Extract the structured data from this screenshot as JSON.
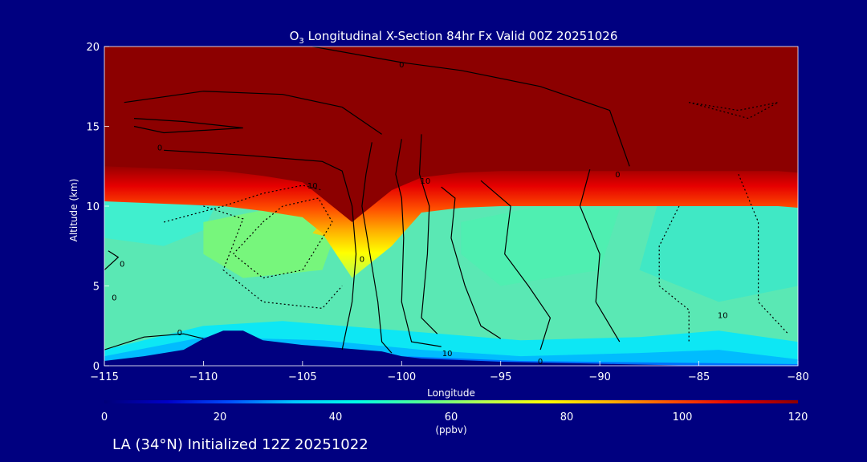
{
  "chart_data": {
    "type": "heatmap",
    "title": "O₃ Longitudinal X-Section 84hr  Fx Valid 00Z 20251026",
    "title_main": "O",
    "title_sub": "3",
    "title_rest": " Longitudinal X-Section 84hr  Fx Valid 00Z 20251026",
    "xlabel": "Longitude",
    "ylabel": "Altitude (km)",
    "xlim": [
      -115,
      -80
    ],
    "ylim": [
      0,
      20
    ],
    "x_ticks": [
      -115,
      -110,
      -105,
      -100,
      -95,
      -90,
      -85,
      -80
    ],
    "x_tick_labels": [
      "−115",
      "−110",
      "−105",
      "−100",
      "−95",
      "−90",
      "−85",
      "−80"
    ],
    "y_ticks": [
      0,
      5,
      10,
      15,
      20
    ],
    "y_tick_labels": [
      "0",
      "5",
      "10",
      "15",
      "20"
    ],
    "colorbar": {
      "min": 0,
      "max": 120,
      "ticks": [
        0,
        20,
        40,
        60,
        80,
        100,
        120
      ],
      "tick_labels": [
        "0",
        "20",
        "40",
        "60",
        "80",
        "100",
        "120"
      ],
      "unit": "(ppbv)",
      "colors": [
        "#000078",
        "#0000c8",
        "#0050ff",
        "#00c8ff",
        "#00ffe6",
        "#50ff96",
        "#b4ff50",
        "#ffff00",
        "#ffb400",
        "#ff5000",
        "#e60000",
        "#8c0000"
      ]
    },
    "tropopause_km": [
      12.5,
      12.4,
      12.3,
      12.2,
      11.9,
      11.5,
      10.5,
      9.0,
      11.0,
      11.8,
      12.1,
      12.2,
      12.2,
      12.2,
      12.2,
      12.2,
      12.2,
      12.2,
      12.2,
      12.1
    ],
    "tropopause_lon": [
      -115,
      -113,
      -111,
      -109,
      -107,
      -105,
      -104,
      -102.5,
      -100.5,
      -99,
      -97,
      -95,
      -93,
      -91,
      -89,
      -87,
      -85,
      -83,
      -81,
      -80
    ],
    "terrain_km": [
      0.3,
      0.6,
      1.0,
      1.7,
      2.2,
      2.2,
      1.6,
      1.3,
      1.1,
      0.9,
      0.6,
      0.45,
      0.35,
      0.25,
      0.2,
      0.15,
      0.1,
      0.05,
      0.0,
      0.0,
      0.0,
      0.0
    ],
    "terrain_lon": [
      -115,
      -113,
      -111,
      -110,
      -109,
      -108,
      -107,
      -105,
      -103,
      -101,
      -100,
      -99,
      -97,
      -95,
      -93,
      -91,
      -89,
      -87,
      -85,
      -83,
      -81,
      -80
    ],
    "contour_labels": [
      {
        "lon": -100,
        "alt": 18.7,
        "text": "0"
      },
      {
        "lon": -112.2,
        "alt": 13.5,
        "text": "0"
      },
      {
        "lon": -104.5,
        "alt": 11.1,
        "text": "10"
      },
      {
        "lon": -98.8,
        "alt": 11.4,
        "text": "10"
      },
      {
        "lon": -89.1,
        "alt": 11.8,
        "text": "0"
      },
      {
        "lon": -114.1,
        "alt": 6.2,
        "text": "0"
      },
      {
        "lon": -102.0,
        "alt": 6.5,
        "text": "0"
      },
      {
        "lon": -111.2,
        "alt": 1.9,
        "text": "0"
      },
      {
        "lon": -97.7,
        "alt": 0.6,
        "text": "10"
      },
      {
        "lon": -93.0,
        "alt": 0.1,
        "text": "0"
      },
      {
        "lon": -83.8,
        "alt": 3.0,
        "text": "10"
      },
      {
        "lon": -114.5,
        "alt": 4.1,
        "text": "0"
      }
    ]
  },
  "footer": {
    "location_text": "LA (34°N) Initialized 12Z 20251022"
  }
}
